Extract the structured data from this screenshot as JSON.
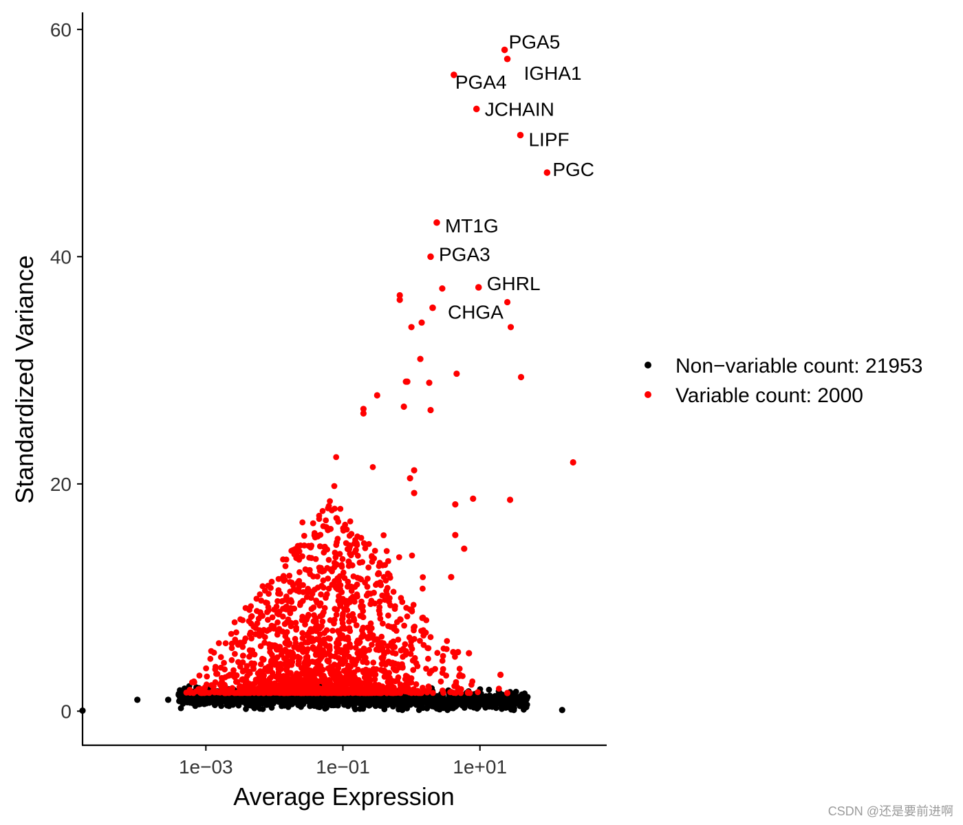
{
  "chart_data": {
    "type": "scatter",
    "title": "",
    "xlabel": "Average Expression",
    "ylabel": "Standardized Variance",
    "xscale": "log10",
    "xlim_log10": [
      -4.8,
      2.85
    ],
    "ylim": [
      -3,
      61.5
    ],
    "x_ticks": [
      {
        "log10": -3,
        "label": "1e−03"
      },
      {
        "log10": -1,
        "label": "1e−01"
      },
      {
        "log10": 1,
        "label": "1e+01"
      }
    ],
    "y_ticks": [
      {
        "value": 0,
        "label": "0"
      },
      {
        "value": 20,
        "label": "20"
      },
      {
        "value": 40,
        "label": "40"
      },
      {
        "value": 60,
        "label": "60"
      }
    ],
    "grid": false,
    "legend": {
      "position": "right",
      "entries": [
        {
          "label": "Non−variable count: 21953",
          "color": "#000000"
        },
        {
          "label": "Variable count: 2000",
          "color": "#ff0000"
        }
      ]
    },
    "labeled_genes": [
      {
        "name": "PGA5",
        "log10x": 1.36,
        "y": 58.2
      },
      {
        "name": "IGHA1",
        "log10x": 1.4,
        "y": 57.4
      },
      {
        "name": "PGA4",
        "log10x": 0.62,
        "y": 56.0
      },
      {
        "name": "JCHAIN",
        "log10x": 0.95,
        "y": 53.0
      },
      {
        "name": "LIPF",
        "log10x": 1.59,
        "y": 50.7
      },
      {
        "name": "PGC",
        "log10x": 1.98,
        "y": 47.4
      },
      {
        "name": "MT1G",
        "log10x": 0.37,
        "y": 43.0
      },
      {
        "name": "PGA3",
        "log10x": 0.28,
        "y": 40.0
      },
      {
        "name": "GHRL",
        "log10x": 0.98,
        "y": 37.3
      },
      {
        "name": "CHGA",
        "log10x": 0.31,
        "y": 35.5
      }
    ],
    "variable_highlights": [
      [
        -0.17,
        36.6
      ],
      [
        -0.17,
        36.2
      ],
      [
        0.45,
        37.2
      ],
      [
        1.4,
        36.0
      ],
      [
        1.45,
        33.8
      ],
      [
        0.15,
        34.2
      ],
      [
        0.0,
        33.8
      ],
      [
        0.13,
        31.0
      ],
      [
        0.66,
        29.7
      ],
      [
        1.6,
        29.4
      ],
      [
        -0.08,
        29.0
      ],
      [
        -0.06,
        29.0
      ],
      [
        0.26,
        28.9
      ],
      [
        -0.5,
        27.8
      ],
      [
        -0.11,
        26.8
      ],
      [
        0.28,
        26.5
      ],
      [
        -0.7,
        26.6
      ],
      [
        -0.7,
        26.2
      ],
      [
        2.36,
        21.9
      ],
      [
        0.9,
        18.7
      ],
      [
        1.44,
        18.6
      ],
      [
        0.64,
        18.2
      ],
      [
        0.64,
        15.5
      ],
      [
        0.77,
        14.3
      ],
      [
        0.04,
        21.2
      ],
      [
        0.04,
        19.2
      ],
      [
        -0.02,
        20.5
      ],
      [
        0.58,
        11.8
      ],
      [
        0.84,
        5.1
      ],
      [
        1.3,
        3.2
      ],
      [
        1.4,
        1.6
      ],
      [
        0.16,
        8.2
      ],
      [
        0.61,
        5.2
      ],
      [
        0.68,
        5.2
      ]
    ],
    "bulk_description": "black non-variable genes form a dense band near y≈1 spanning log10 x from -4.8 to 1.9; red variable genes form a cloud peaking around log10 x ≈ -1.3 with variance up to ~27"
  },
  "watermark": "CSDN @还是要前进啊"
}
